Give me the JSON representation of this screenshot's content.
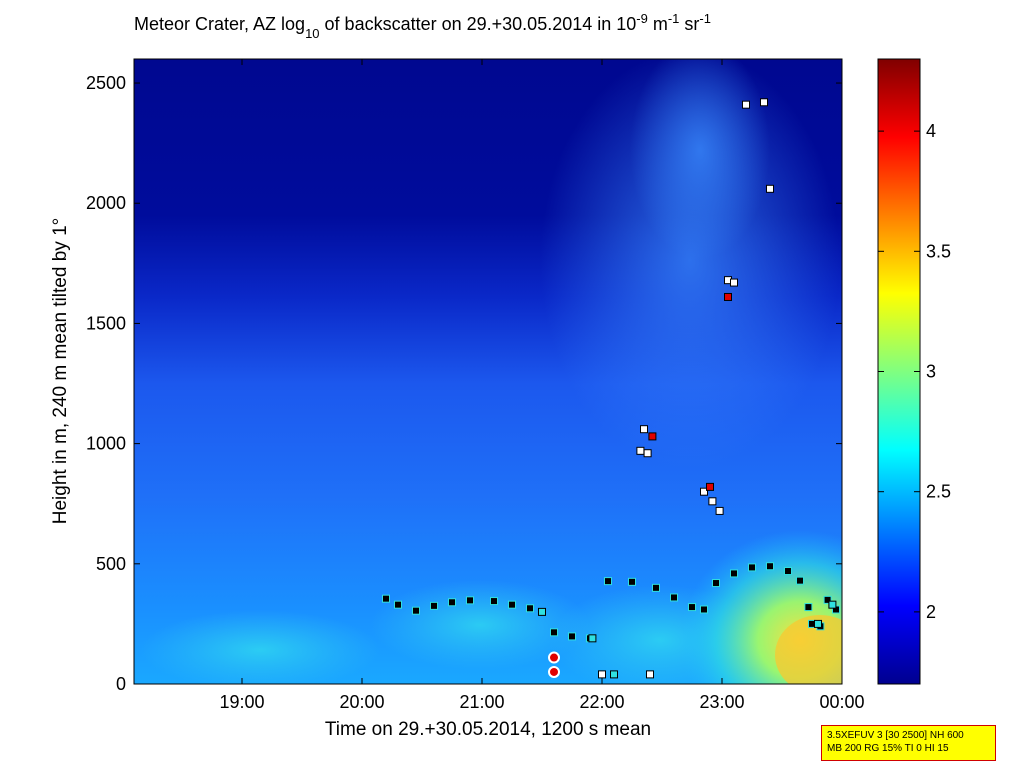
{
  "chart_data": {
    "type": "heatmap",
    "title_parts": {
      "pre": "Meteor Crater, AZ log",
      "sub": "10",
      "mid": " of backscatter on 29.+30.05.2014 in 10",
      "sup1": "-9",
      "mid2": " m",
      "sup2": "-1",
      "mid3": " sr",
      "sup3": "-1"
    },
    "xlabel": "Time on 29.+30.05.2014, 1200 s mean",
    "ylabel": "Height in m, 240 m mean tilted by 1°",
    "x_range_hours": [
      18.1,
      24.0
    ],
    "ylim": [
      0,
      2600
    ],
    "x_ticks": [
      {
        "value": 19,
        "label": "19:00"
      },
      {
        "value": 20,
        "label": "20:00"
      },
      {
        "value": 21,
        "label": "21:00"
      },
      {
        "value": 22,
        "label": "22:00"
      },
      {
        "value": 23,
        "label": "23:00"
      },
      {
        "value": 24,
        "label": "00:00"
      }
    ],
    "y_ticks": [
      0,
      500,
      1000,
      1500,
      2000,
      2500
    ],
    "colorbar": {
      "range": [
        1.7,
        4.3
      ],
      "ticks": [
        2,
        2.5,
        3,
        3.5,
        4
      ]
    },
    "layer_series": [
      {
        "marker": "black",
        "points": [
          [
            20.2,
            355
          ],
          [
            20.3,
            330
          ],
          [
            20.45,
            305
          ],
          [
            20.6,
            325
          ],
          [
            20.75,
            340
          ],
          [
            20.9,
            348
          ],
          [
            21.1,
            345
          ],
          [
            21.25,
            330
          ],
          [
            21.4,
            315
          ],
          [
            21.6,
            215
          ],
          [
            21.75,
            198
          ],
          [
            21.9,
            190
          ],
          [
            22.05,
            428
          ],
          [
            22.25,
            425
          ],
          [
            22.45,
            400
          ],
          [
            22.6,
            360
          ],
          [
            22.75,
            320
          ],
          [
            22.85,
            310
          ],
          [
            22.95,
            420
          ],
          [
            23.1,
            460
          ],
          [
            23.25,
            485
          ],
          [
            23.4,
            490
          ],
          [
            23.55,
            470
          ],
          [
            23.65,
            430
          ],
          [
            23.72,
            320
          ],
          [
            23.75,
            250
          ],
          [
            23.82,
            240
          ],
          [
            23.88,
            350
          ],
          [
            23.95,
            310
          ]
        ]
      },
      {
        "marker": "white",
        "points": [
          [
            22.35,
            1060
          ],
          [
            22.32,
            970
          ],
          [
            22.38,
            960
          ],
          [
            22.85,
            800
          ],
          [
            22.92,
            760
          ],
          [
            22.98,
            720
          ],
          [
            23.05,
            1680
          ],
          [
            23.1,
            1670
          ],
          [
            23.2,
            2410
          ],
          [
            23.35,
            2420
          ],
          [
            23.4,
            2060
          ],
          [
            21.6,
            50
          ],
          [
            22.0,
            40
          ],
          [
            22.4,
            40
          ]
        ]
      },
      {
        "marker": "red",
        "points": [
          [
            22.42,
            1030
          ],
          [
            22.9,
            820
          ],
          [
            23.05,
            1610
          ]
        ]
      },
      {
        "marker": "cyan",
        "points": [
          [
            21.5,
            300
          ],
          [
            21.92,
            190
          ],
          [
            22.1,
            40
          ],
          [
            23.8,
            250
          ],
          [
            23.92,
            330
          ]
        ]
      }
    ],
    "circle_markers": [
      {
        "x": 21.6,
        "y": 110,
        "fill": "red"
      },
      {
        "x": 21.6,
        "y": 50,
        "fill": "red"
      }
    ]
  },
  "info_box": {
    "line1": "3.5XEFUV 3 [30 2500] NH 600",
    "line2": "MB 200 RG 15% TI 0 HI 15"
  },
  "colors": {
    "frame": "#000000",
    "info_bg": "#ffff00",
    "info_border": "#d00000"
  }
}
